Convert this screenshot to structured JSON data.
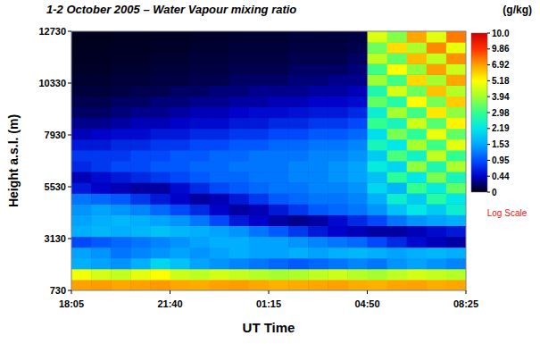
{
  "chart_data": {
    "type": "heatmap",
    "title": "1-2 October 2005 – Water Vapour mixing ratio",
    "x_label": "UT Time",
    "y_label": "Height a.s.l. (m)",
    "xlim": [
      0,
      860
    ],
    "xticks": [
      {
        "value": 0,
        "label": "18:05"
      },
      {
        "value": 215,
        "label": "21:40"
      },
      {
        "value": 430,
        "label": "01:15"
      },
      {
        "value": 645,
        "label": "04:50"
      },
      {
        "value": 860,
        "label": "08:25"
      }
    ],
    "ylim": [
      730,
      12730
    ],
    "yticks": [
      730,
      3130,
      5530,
      7930,
      10330,
      12730
    ],
    "x_bins": [
      0,
      43,
      86,
      129,
      172,
      215,
      258,
      301,
      344,
      387,
      430,
      473,
      516,
      559,
      602,
      645,
      688,
      731,
      774,
      817,
      860
    ],
    "y_bins": [
      730,
      1230,
      1730,
      2230,
      2730,
      3230,
      3730,
      4230,
      4730,
      5230,
      5730,
      6230,
      6730,
      7230,
      7730,
      8230,
      8730,
      9230,
      9730,
      10230,
      10730,
      11230,
      11730,
      12230,
      12730
    ],
    "cells": [
      [
        6.9,
        7.0,
        6.8,
        6.9,
        7.1,
        6.8,
        6.7,
        6.9,
        7.0,
        6.8,
        6.6,
        6.7,
        6.8,
        6.9,
        6.7,
        6.6,
        6.8,
        6.9,
        6.7,
        6.8
      ],
      [
        5.0,
        4.6,
        4.4,
        4.8,
        5.2,
        4.5,
        4.3,
        4.6,
        4.4,
        4.2,
        4.0,
        4.1,
        4.3,
        4.5,
        4.2,
        4.0,
        4.3,
        4.6,
        4.4,
        4.2
      ],
      [
        1.6,
        1.5,
        1.4,
        1.6,
        2.0,
        1.8,
        1.5,
        1.4,
        1.3,
        1.2,
        1.1,
        1.0,
        1.1,
        1.2,
        1.3,
        1.2,
        1.4,
        1.5,
        1.4,
        1.3
      ],
      [
        1.5,
        1.4,
        1.2,
        1.3,
        1.4,
        1.5,
        1.4,
        1.5,
        1.6,
        1.5,
        1.5,
        1.6,
        1.5,
        1.6,
        1.7,
        1.6,
        1.5,
        1.6,
        1.7,
        1.6
      ],
      [
        0.9,
        1.0,
        1.1,
        1.2,
        1.3,
        1.4,
        1.5,
        1.6,
        1.6,
        1.5,
        1.5,
        1.4,
        1.3,
        1.2,
        1.1,
        0.9,
        0.7,
        0.5,
        0.4,
        0.35
      ],
      [
        1.6,
        1.7,
        1.6,
        1.7,
        1.8,
        1.7,
        1.6,
        1.5,
        1.4,
        1.2,
        1.0,
        0.8,
        0.6,
        0.45,
        0.4,
        0.35,
        0.35,
        0.4,
        0.5,
        0.6
      ],
      [
        1.5,
        1.6,
        1.7,
        1.6,
        1.5,
        1.4,
        1.2,
        0.9,
        0.6,
        0.45,
        0.35,
        0.3,
        0.35,
        0.5,
        0.7,
        0.9,
        1.2,
        1.4,
        1.5,
        1.6
      ],
      [
        1.4,
        1.5,
        1.4,
        1.3,
        1.1,
        0.9,
        0.7,
        0.45,
        0.35,
        0.4,
        0.6,
        0.8,
        1.0,
        1.1,
        1.2,
        1.4,
        1.8,
        2.2,
        1.9,
        2.4
      ],
      [
        1.2,
        1.1,
        1.0,
        0.8,
        0.6,
        0.45,
        0.35,
        0.4,
        0.6,
        0.8,
        1.0,
        1.1,
        1.2,
        1.2,
        1.3,
        1.6,
        2.4,
        1.9,
        2.8,
        2.2
      ],
      [
        0.6,
        0.45,
        0.4,
        0.35,
        0.35,
        0.5,
        0.7,
        0.9,
        1.0,
        1.1,
        1.2,
        1.2,
        1.3,
        1.3,
        1.4,
        2.0,
        1.7,
        3.0,
        2.3,
        3.4
      ],
      [
        0.4,
        0.5,
        0.6,
        0.7,
        0.8,
        0.9,
        1.0,
        1.1,
        1.1,
        1.2,
        1.2,
        1.3,
        1.3,
        1.4,
        1.5,
        1.8,
        2.9,
        2.2,
        3.6,
        2.6
      ],
      [
        0.7,
        0.8,
        0.9,
        0.9,
        1.0,
        1.0,
        1.1,
        1.1,
        1.2,
        1.2,
        1.2,
        1.3,
        1.3,
        1.4,
        1.5,
        2.3,
        2.0,
        3.8,
        2.7,
        4.1
      ],
      [
        0.8,
        0.8,
        0.8,
        0.9,
        0.9,
        1.0,
        1.0,
        1.1,
        1.1,
        1.2,
        1.2,
        1.2,
        1.3,
        1.3,
        1.4,
        1.9,
        3.2,
        2.5,
        4.4,
        3.0
      ],
      [
        0.6,
        0.6,
        0.7,
        0.7,
        0.8,
        0.8,
        0.9,
        0.9,
        1.0,
        1.0,
        1.1,
        1.1,
        1.2,
        1.2,
        1.3,
        2.6,
        2.2,
        4.0,
        3.1,
        4.8
      ],
      [
        0.4,
        0.45,
        0.5,
        0.5,
        0.6,
        0.6,
        0.7,
        0.7,
        0.8,
        0.8,
        0.9,
        0.9,
        1.0,
        1.0,
        1.1,
        2.1,
        3.6,
        2.9,
        4.9,
        3.4
      ],
      [
        0.3,
        0.3,
        0.35,
        0.4,
        0.4,
        0.45,
        0.5,
        0.5,
        0.6,
        0.6,
        0.7,
        0.7,
        0.8,
        0.8,
        0.9,
        3.0,
        2.6,
        4.5,
        3.3,
        5.4
      ],
      [
        0.2,
        0.2,
        0.25,
        0.3,
        0.3,
        0.35,
        0.4,
        0.4,
        0.45,
        0.5,
        0.5,
        0.55,
        0.6,
        0.6,
        0.7,
        2.4,
        4.0,
        3.1,
        5.6,
        3.8
      ],
      [
        0.15,
        0.15,
        0.2,
        0.2,
        0.25,
        0.25,
        0.3,
        0.3,
        0.35,
        0.35,
        0.4,
        0.4,
        0.45,
        0.45,
        0.5,
        3.4,
        2.8,
        5.2,
        3.6,
        6.1
      ],
      [
        0.1,
        0.1,
        0.12,
        0.15,
        0.15,
        0.2,
        0.2,
        0.25,
        0.25,
        0.3,
        0.3,
        0.3,
        0.35,
        0.35,
        0.4,
        2.7,
        4.6,
        3.5,
        6.3,
        4.2
      ],
      [
        0.08,
        0.08,
        0.1,
        0.1,
        0.12,
        0.12,
        0.15,
        0.15,
        0.2,
        0.2,
        0.2,
        0.25,
        0.25,
        0.3,
        0.3,
        3.9,
        3.1,
        5.9,
        4.0,
        6.8
      ],
      [
        0.06,
        0.06,
        0.08,
        0.08,
        0.1,
        0.1,
        0.12,
        0.12,
        0.15,
        0.15,
        0.15,
        0.2,
        0.2,
        0.2,
        0.25,
        3.1,
        5.2,
        3.8,
        6.9,
        4.5
      ],
      [
        0.05,
        0.05,
        0.06,
        0.06,
        0.08,
        0.08,
        0.1,
        0.1,
        0.12,
        0.12,
        0.12,
        0.15,
        0.15,
        0.15,
        0.2,
        4.3,
        3.4,
        6.4,
        4.4,
        7.3
      ],
      [
        0.04,
        0.04,
        0.05,
        0.05,
        0.06,
        0.06,
        0.08,
        0.08,
        0.1,
        0.1,
        0.1,
        0.12,
        0.12,
        0.12,
        0.15,
        3.5,
        5.8,
        4.1,
        7.5,
        4.9
      ],
      [
        0.03,
        0.03,
        0.04,
        0.04,
        0.05,
        0.05,
        0.06,
        0.06,
        0.08,
        0.08,
        0.08,
        0.1,
        0.1,
        0.1,
        0.12,
        4.7,
        3.7,
        6.8,
        4.8,
        7.9
      ]
    ],
    "colorbar": {
      "title": "(g/kg)",
      "range": [
        0,
        10
      ],
      "ticks": [
        0,
        0.44,
        0.95,
        1.53,
        2.19,
        2.98,
        3.94,
        5.18,
        6.92,
        9.86,
        {
          "value": 10,
          "label": "10.0"
        }
      ],
      "log": true,
      "annotation": "Log Scale"
    }
  }
}
